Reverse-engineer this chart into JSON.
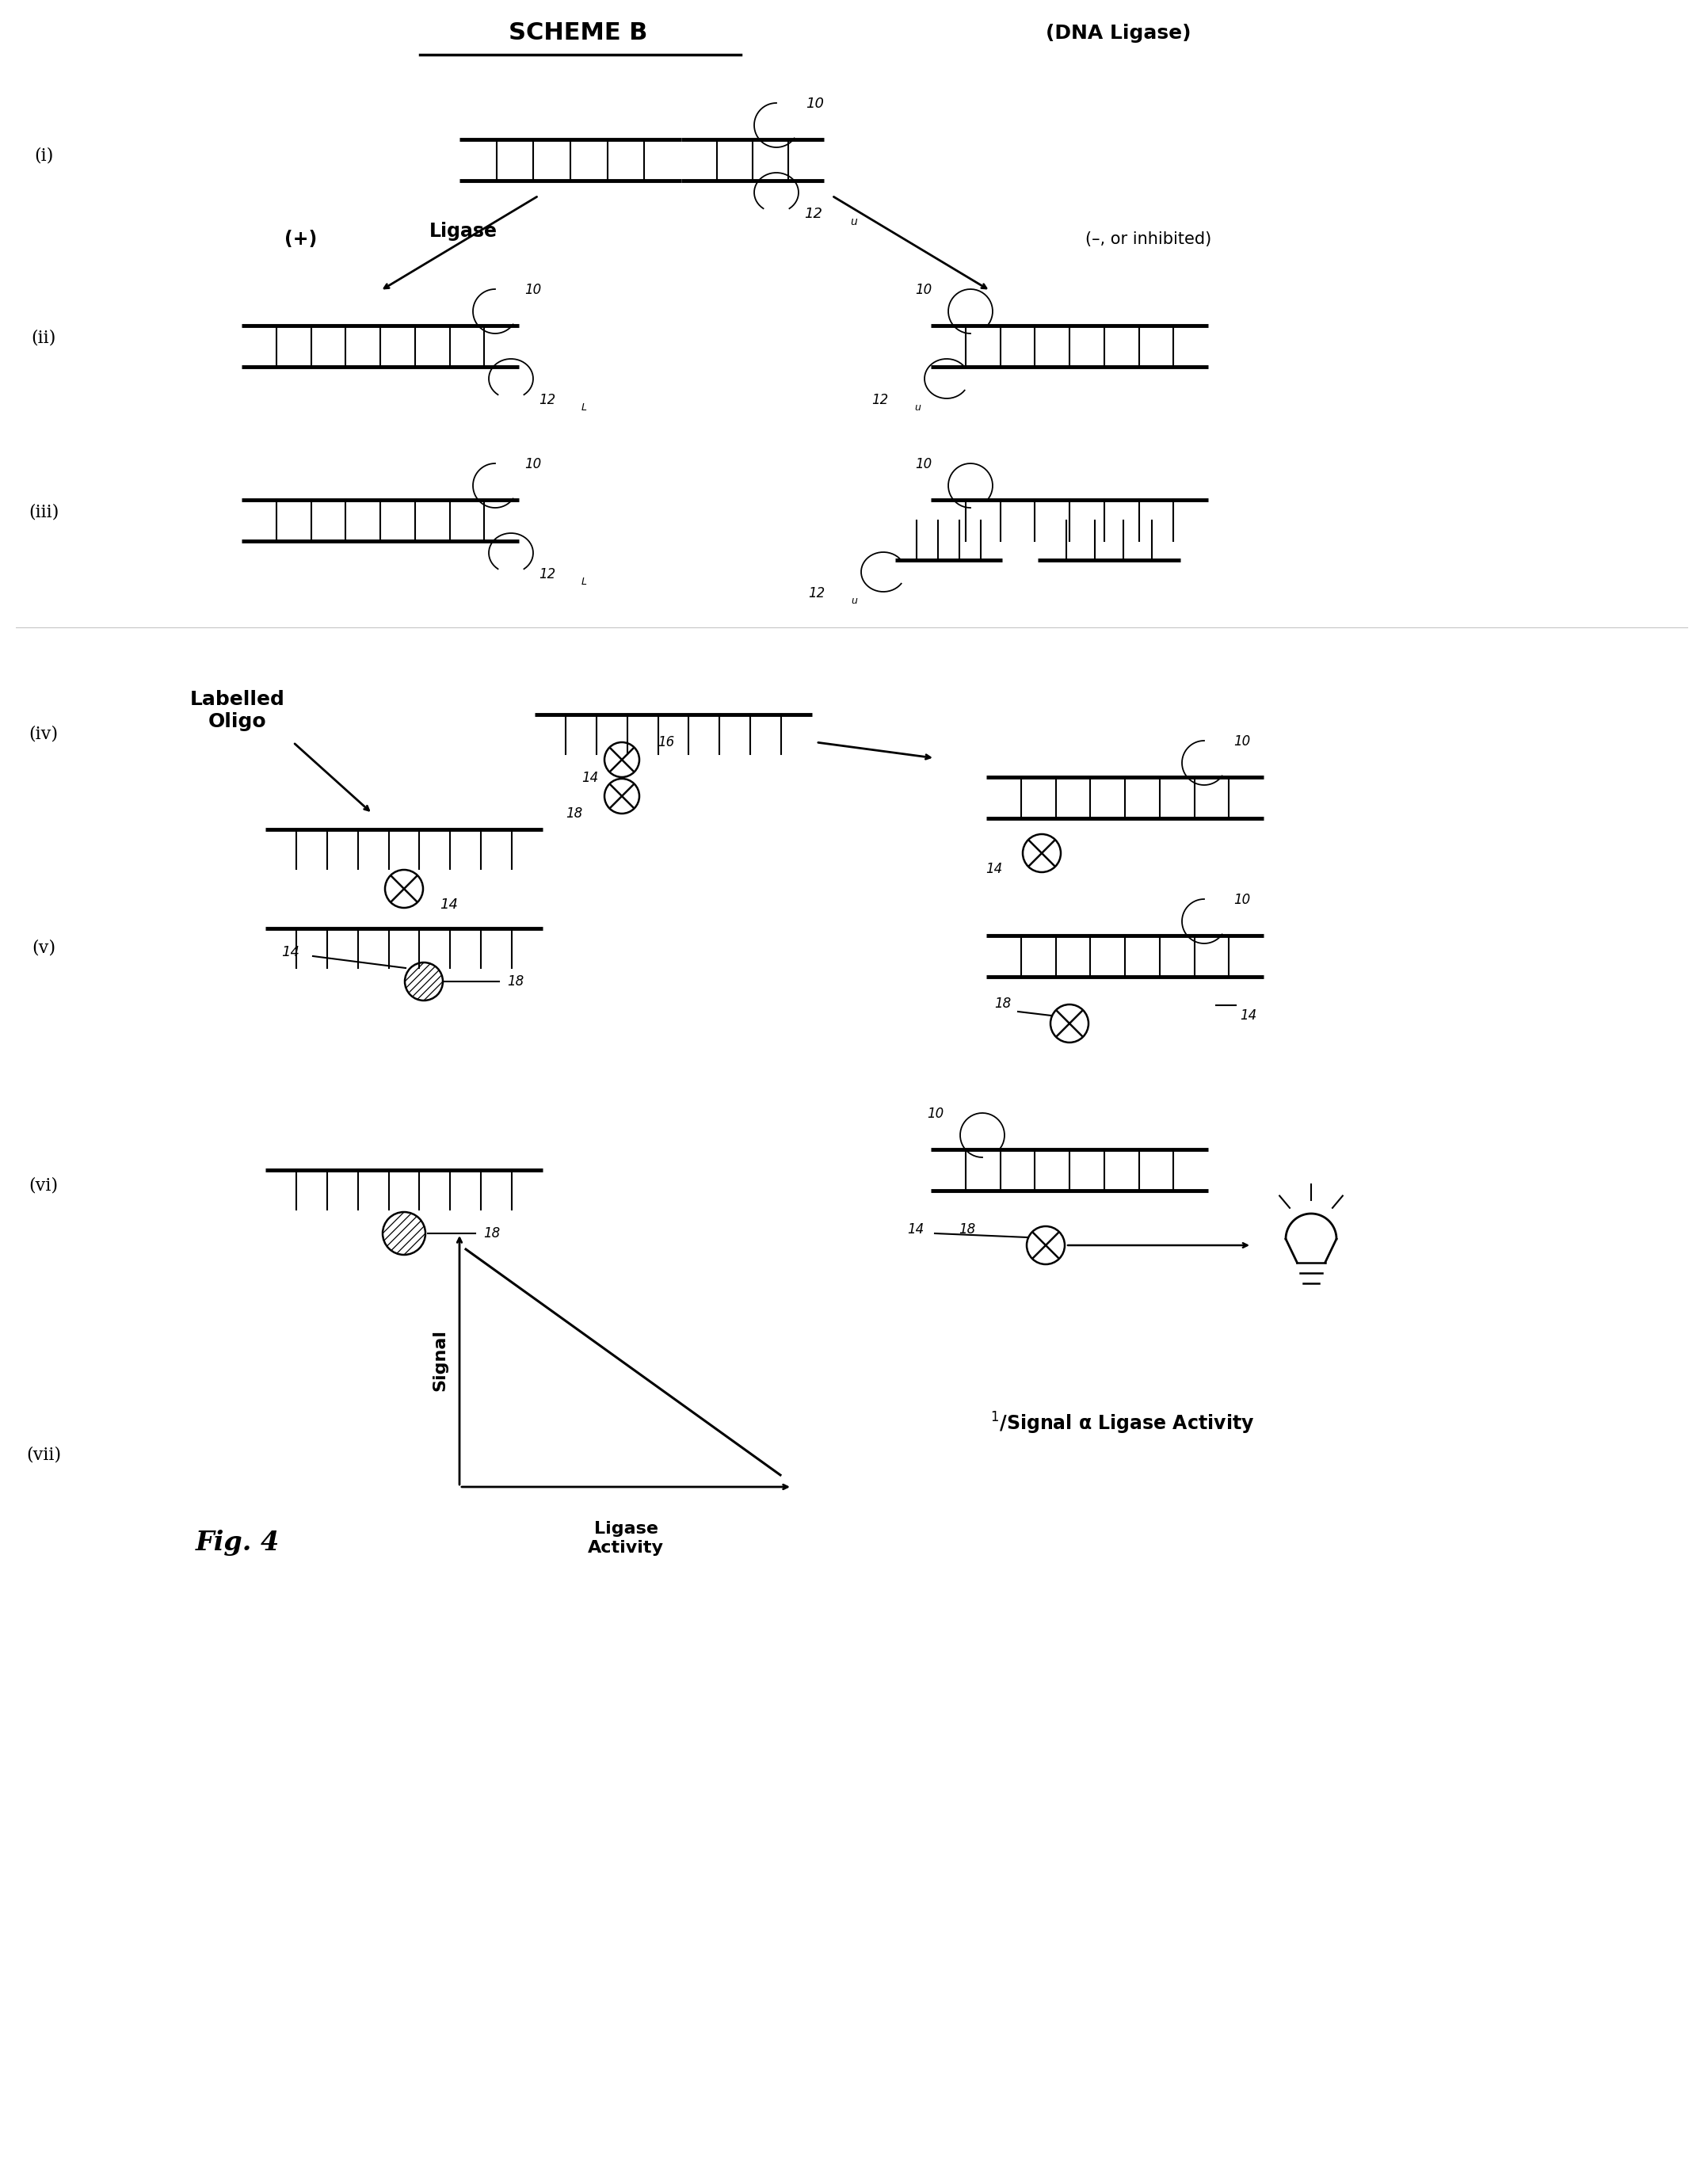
{
  "title": "SCHEME B",
  "subtitle": "(DNA Ligase)",
  "fig_label": "Fig. 4",
  "background_color": "#ffffff",
  "line_color": "#000000",
  "row_labels": [
    "(i)",
    "(ii)",
    "(iii)",
    "(iv)",
    "(v)",
    "(vi)",
    "(vii)"
  ],
  "plus_label": "(+)",
  "ligase_label": "Ligase",
  "minus_label": "(–, or inhibited)",
  "labelled_oligo_label": "Labelled\nOligo",
  "signal_label": "Signal",
  "ligase_activity_label": "Ligase\nActivity",
  "inverse_signal_label": "$^{1}$/Signal α Ligase Activity"
}
